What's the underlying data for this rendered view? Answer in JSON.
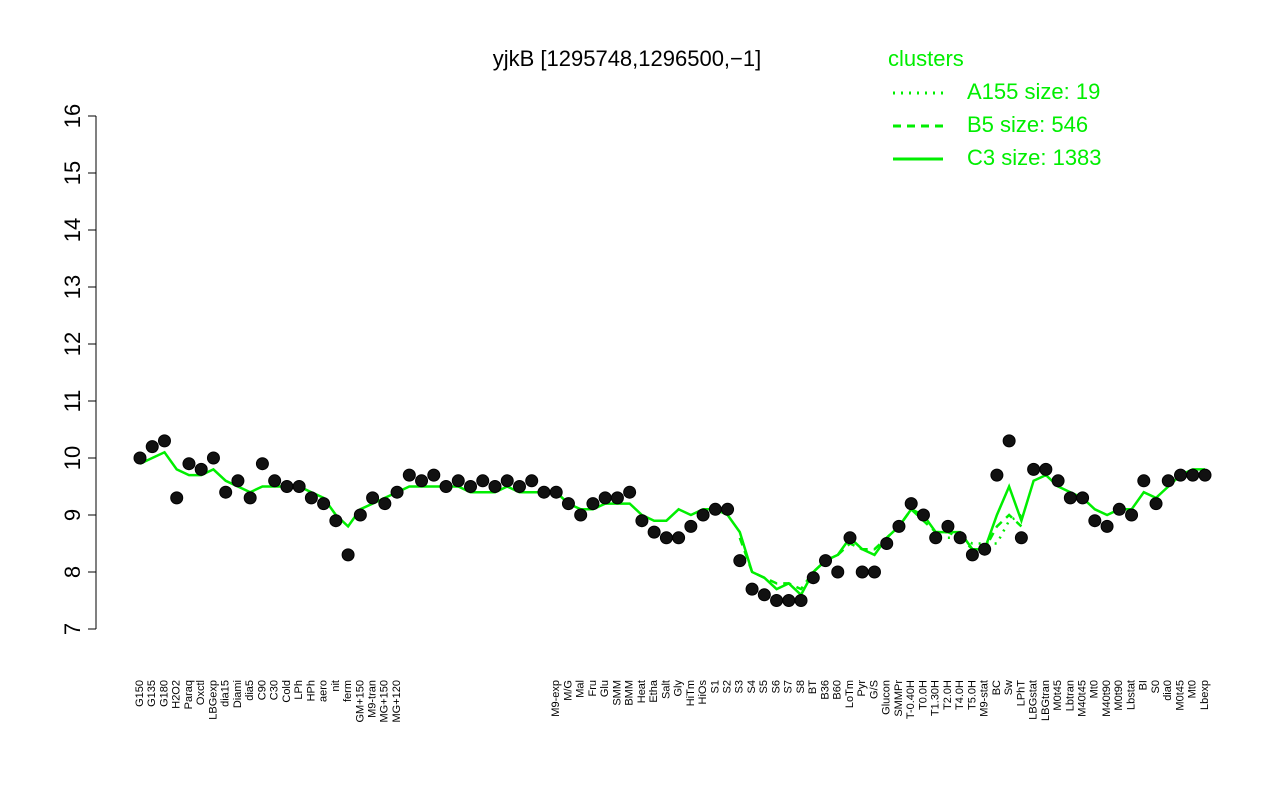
{
  "chart_data": {
    "type": "line",
    "title": "yjkB [1295748,1296500,−1]",
    "legend_title": "clusters",
    "legend_color": "#00ee00",
    "point_color": "#111111",
    "categories": [
      "G150",
      "G135",
      "G180",
      "H2O2",
      "Paraq",
      "Oxctl",
      "LBGexp",
      "dia15",
      "Diami",
      "dia5",
      "C90",
      "C30",
      "Cold",
      "LPh",
      "HPh",
      "aero",
      "nit",
      "ferm",
      "GM+150",
      "M9-tran",
      "MG+150",
      "MG+120",
      null,
      null,
      null,
      null,
      null,
      null,
      null,
      null,
      null,
      null,
      null,
      null,
      "M9-exp",
      "M/G",
      "Mal",
      "Fru",
      "Glu",
      "SMM",
      "BMM",
      "Heat",
      "Etha",
      "Salt",
      "Gly",
      "HiTm",
      "HiOs",
      "S1",
      "S2",
      "S3",
      "S4",
      "S5",
      "S6",
      "S7",
      "S8",
      "BT",
      "B36",
      "B60",
      "LoTm",
      "Pyr",
      "G/S",
      "Glucon",
      "SMMPr",
      "T-0.40H",
      "T0.0H",
      "T1.30H",
      "T2.0H",
      "T4.0H",
      "T5.0H",
      "M9-stat",
      "BC",
      "Sw",
      "LPhT",
      "LBGstat",
      "LBGtran",
      "M0t45",
      "Lbtran",
      "M40t45",
      "Mt0",
      "M40t90",
      "M0t90",
      "Lbstat",
      "BI",
      "S0",
      "dia0",
      "M0t45",
      "Mt0",
      "Lbexp"
    ],
    "values": [
      10.0,
      10.2,
      10.3,
      9.3,
      9.9,
      9.8,
      10.0,
      9.4,
      9.6,
      9.3,
      9.9,
      9.6,
      9.5,
      9.5,
      9.3,
      9.2,
      8.9,
      8.3,
      9.0,
      9.3,
      9.2,
      9.4,
      9.7,
      9.6,
      9.7,
      9.5,
      9.6,
      9.5,
      9.6,
      9.5,
      9.6,
      9.5,
      9.6,
      9.4,
      9.4,
      9.2,
      9.0,
      9.2,
      9.3,
      9.3,
      9.4,
      8.9,
      8.7,
      8.6,
      8.6,
      8.8,
      9.0,
      9.1,
      9.1,
      8.2,
      7.7,
      7.6,
      7.5,
      7.5,
      7.5,
      7.9,
      8.2,
      8.0,
      8.6,
      8.0,
      8.0,
      8.5,
      8.8,
      9.2,
      9.0,
      8.6,
      8.8,
      8.6,
      8.3,
      8.4,
      9.7,
      10.3,
      8.6,
      9.8,
      9.8,
      9.6,
      9.3,
      9.3,
      8.9,
      8.8,
      9.1,
      9.0,
      9.6,
      9.2,
      9.6,
      9.7,
      9.7,
      9.7
    ],
    "series": [
      {
        "name": "A155 size: 19",
        "color": "#00ee00",
        "dash": "2,6",
        "values": [
          null,
          null,
          null,
          null,
          null,
          null,
          null,
          null,
          null,
          null,
          null,
          null,
          null,
          null,
          null,
          null,
          null,
          null,
          null,
          null,
          null,
          null,
          null,
          null,
          null,
          null,
          null,
          null,
          null,
          null,
          null,
          null,
          null,
          null,
          null,
          null,
          null,
          null,
          null,
          null,
          null,
          null,
          null,
          null,
          null,
          null,
          null,
          null,
          null,
          null,
          null,
          null,
          null,
          null,
          null,
          null,
          null,
          null,
          null,
          null,
          null,
          null,
          null,
          null,
          null,
          null,
          8.6,
          8.6,
          8.5,
          8.5,
          8.5,
          8.9,
          9.0,
          null,
          null,
          null,
          null,
          null,
          null,
          null,
          null,
          null,
          null,
          null,
          null,
          null,
          null,
          null
        ]
      },
      {
        "name": "B5 size: 546",
        "color": "#00ee00",
        "dash": "8,6",
        "values": [
          null,
          null,
          null,
          null,
          null,
          null,
          null,
          null,
          null,
          null,
          null,
          null,
          null,
          null,
          null,
          null,
          null,
          null,
          null,
          null,
          null,
          null,
          null,
          null,
          null,
          null,
          null,
          null,
          null,
          null,
          null,
          null,
          null,
          null,
          null,
          null,
          null,
          null,
          null,
          null,
          null,
          null,
          null,
          null,
          null,
          null,
          null,
          null,
          null,
          8.6,
          8.0,
          7.9,
          7.8,
          7.8,
          7.7,
          8.0,
          8.2,
          8.3,
          8.5,
          8.4,
          8.4,
          8.6,
          8.8,
          9.1,
          8.9,
          8.7,
          8.7,
          8.6,
          8.4,
          8.4,
          8.8,
          9.0,
          8.8,
          null,
          null,
          null,
          null,
          null,
          null,
          null,
          null,
          null,
          null,
          null,
          null,
          null,
          null,
          null
        ]
      },
      {
        "name": "C3 size: 1383",
        "color": "#00ee00",
        "dash": "none",
        "values": [
          9.9,
          10.0,
          10.1,
          9.8,
          9.7,
          9.7,
          9.8,
          9.6,
          9.5,
          9.4,
          9.5,
          9.5,
          9.5,
          9.5,
          9.4,
          9.3,
          9.0,
          8.8,
          9.1,
          9.2,
          9.3,
          9.4,
          9.5,
          9.5,
          9.5,
          9.5,
          9.5,
          9.4,
          9.4,
          9.4,
          9.5,
          9.4,
          9.4,
          9.4,
          9.4,
          9.2,
          9.1,
          9.1,
          9.2,
          9.2,
          9.2,
          9.0,
          8.9,
          8.9,
          9.1,
          9.0,
          9.1,
          9.1,
          9.0,
          8.7,
          8.0,
          7.9,
          7.7,
          7.8,
          7.6,
          8.0,
          8.2,
          8.3,
          8.6,
          8.4,
          8.3,
          8.6,
          8.8,
          9.1,
          9.0,
          8.7,
          8.7,
          8.7,
          8.4,
          8.4,
          9.0,
          9.5,
          8.9,
          9.6,
          9.7,
          9.5,
          9.4,
          9.3,
          9.1,
          9.0,
          9.1,
          9.1,
          9.4,
          9.3,
          9.5,
          9.7,
          9.8,
          9.8
        ]
      }
    ],
    "ylim": [
      7,
      16
    ],
    "yticks": [
      7,
      8,
      9,
      10,
      11,
      12,
      13,
      14,
      15,
      16
    ]
  }
}
